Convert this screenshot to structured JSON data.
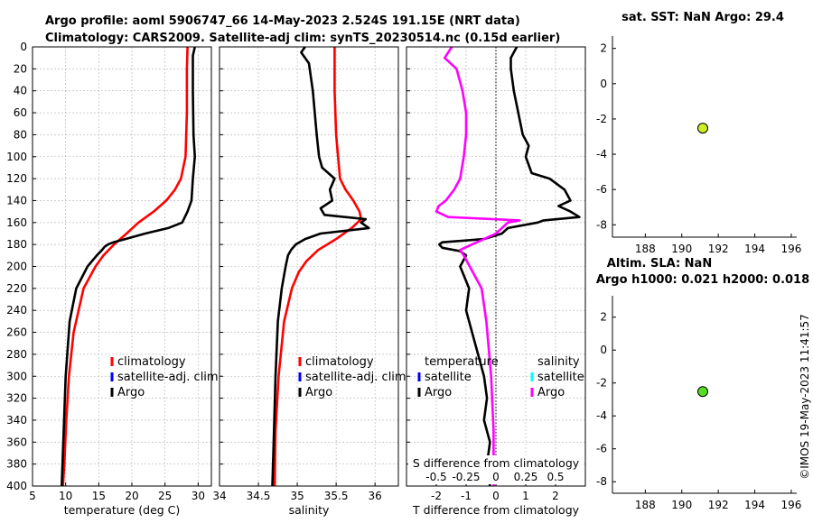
{
  "title_line1": "Argo profile: aoml 5906747_66 14-May-2023 2.524S 191.15E (NRT data)",
  "title_line2": "Climatology: CARS2009. Satellite-adj clim: synTS_20230514.nc (0.15d earlier)",
  "stamp": "©IMOS 19-May-2023 11:41:57",
  "colors": {
    "climatology": "#ff0000",
    "satellite": "#0000ff",
    "argo": "#000000",
    "salinity_sat": "#00ffff",
    "salinity_argo": "#ff00ff",
    "marker1": "#ccee22",
    "marker2": "#55dd22"
  },
  "chart_data": [
    {
      "id": "temperature",
      "type": "line",
      "xlabel": "temperature (deg C)",
      "xlim": [
        5,
        32
      ],
      "xticks": [
        "5",
        "10",
        "15",
        "20",
        "25",
        "30"
      ],
      "ylim": [
        0,
        400
      ],
      "yticks": [
        "0",
        "20",
        "40",
        "60",
        "80",
        "100",
        "120",
        "140",
        "160",
        "180",
        "200",
        "220",
        "240",
        "260",
        "280",
        "300",
        "320",
        "340",
        "360",
        "380",
        "400"
      ],
      "legend": [
        "climatology",
        "satellite-adj. clim",
        "Argo"
      ],
      "series": [
        {
          "name": "climatology",
          "y": [
            0,
            20,
            60,
            100,
            120,
            130,
            140,
            150,
            160,
            170,
            180,
            190,
            200,
            220,
            260,
            300,
            340,
            380,
            400
          ],
          "x": [
            28.4,
            28.3,
            28.3,
            28.1,
            27.4,
            26.5,
            25.2,
            23.3,
            21.0,
            19.2,
            17.3,
            15.7,
            14.5,
            12.7,
            11.2,
            10.5,
            10.1,
            9.8,
            9.6
          ]
        },
        {
          "name": "Argo",
          "y": [
            0,
            3,
            8,
            40,
            80,
            100,
            120,
            140,
            150,
            160,
            165,
            170,
            175,
            178,
            180,
            182,
            185,
            190,
            200,
            220,
            250,
            300,
            350,
            400
          ],
          "x": [
            29.5,
            29.4,
            29.2,
            29.2,
            29.3,
            29.5,
            29.2,
            29.0,
            28.4,
            27.6,
            25.5,
            22.0,
            19.0,
            17.2,
            16.4,
            15.9,
            15.5,
            14.7,
            13.3,
            11.6,
            10.6,
            10.0,
            9.7,
            9.4
          ]
        }
      ]
    },
    {
      "id": "salinity",
      "type": "line",
      "xlabel": "salinity",
      "xlim": [
        34,
        36.3
      ],
      "xticks": [
        "34",
        "34.5",
        "35",
        "35.5",
        "36"
      ],
      "ylim": [
        0,
        400
      ],
      "legend": [
        "climatology",
        "satellite-adj. clim",
        "Argo"
      ],
      "series": [
        {
          "name": "climatology",
          "y": [
            0,
            40,
            80,
            120,
            130,
            140,
            150,
            157,
            165,
            175,
            185,
            195,
            205,
            220,
            250,
            300,
            350,
            400
          ],
          "x": [
            35.48,
            35.48,
            35.5,
            35.55,
            35.62,
            35.72,
            35.8,
            35.82,
            35.7,
            35.5,
            35.27,
            35.12,
            35.02,
            34.93,
            34.83,
            34.76,
            34.72,
            34.71
          ]
        },
        {
          "name": "Argo",
          "y": [
            0,
            5,
            15,
            40,
            80,
            100,
            110,
            120,
            130,
            140,
            147,
            153,
            157,
            160,
            165,
            170,
            175,
            180,
            185,
            190,
            200,
            220,
            250,
            300,
            350,
            400
          ],
          "x": [
            35.1,
            35.05,
            35.15,
            35.2,
            35.25,
            35.28,
            35.32,
            35.48,
            35.42,
            35.45,
            35.3,
            35.35,
            35.88,
            35.82,
            35.92,
            35.3,
            35.1,
            34.98,
            34.92,
            34.88,
            34.85,
            34.8,
            34.75,
            34.72,
            34.7,
            34.68
          ]
        }
      ]
    },
    {
      "id": "difference",
      "type": "line",
      "xlabel": "T difference from climatology",
      "top_xlabel": "S difference from climatology",
      "xlim": [
        -3,
        3
      ],
      "xticks": [
        "-2",
        "-1",
        "0",
        "1",
        "2"
      ],
      "s_xticks": [
        "-0.5",
        "-0.25",
        "0",
        "0.25",
        "0.5"
      ],
      "ylim": [
        0,
        400
      ],
      "legend_temperature_title": "temperature",
      "legend_salinity_title": "salinity",
      "legend_temperature": [
        "satellite",
        "Argo"
      ],
      "legend_salinity": [
        "satellite",
        "Argo"
      ],
      "series": [
        {
          "name": "T Argo",
          "y": [
            0,
            5,
            10,
            20,
            40,
            80,
            90,
            100,
            115,
            120,
            130,
            140,
            145,
            150,
            155,
            158,
            160,
            165,
            170,
            175,
            178,
            180,
            183,
            186,
            190,
            200,
            220,
            240,
            260,
            280,
            300,
            320,
            340,
            360,
            380,
            400
          ],
          "x": [
            0.7,
            0.6,
            0.5,
            0.5,
            0.6,
            0.9,
            1.1,
            1.0,
            1.2,
            1.8,
            2.3,
            2.5,
            2.1,
            2.5,
            2.8,
            1.6,
            1.4,
            0.4,
            0.2,
            -0.4,
            -1.8,
            -1.9,
            -1.8,
            -1.2,
            -1.0,
            -1.2,
            -0.9,
            -1.0,
            -0.8,
            -0.6,
            -0.4,
            -0.3,
            -0.4,
            -0.2,
            -0.3,
            -0.2
          ]
        },
        {
          "name": "S Argo",
          "y": [
            0,
            10,
            20,
            40,
            60,
            80,
            100,
            120,
            130,
            140,
            145,
            150,
            155,
            158,
            160,
            165,
            170,
            175,
            180,
            185,
            190,
            200,
            220,
            250,
            300,
            350,
            400
          ],
          "x": [
            -0.37,
            -0.43,
            -0.33,
            -0.28,
            -0.25,
            -0.25,
            -0.27,
            -0.3,
            -0.35,
            -0.42,
            -0.48,
            -0.5,
            -0.4,
            0.2,
            0.1,
            0.05,
            0.0,
            -0.1,
            -0.2,
            -0.3,
            -0.27,
            -0.22,
            -0.12,
            -0.08,
            -0.04,
            -0.02,
            -0.02
          ]
        }
      ]
    },
    {
      "id": "sst",
      "type": "scatter",
      "title": "sat. SST: NaN Argo: 29.4",
      "xlim": [
        186.2,
        196.3
      ],
      "xticks": [
        "188",
        "190",
        "192",
        "194",
        "196"
      ],
      "ylim": [
        -8.7,
        2.7
      ],
      "yticks": [
        "2",
        "0",
        "-2",
        "-4",
        "-6",
        "-8"
      ],
      "points": [
        {
          "x": 191.15,
          "y": -2.52
        }
      ]
    },
    {
      "id": "sla",
      "type": "scatter",
      "title": "Altim. SLA: NaN",
      "subtitle": "Argo h1000: 0.021 h2000: 0.018",
      "xlim": [
        186.2,
        196.3
      ],
      "xticks": [
        "188",
        "190",
        "192",
        "194",
        "196"
      ],
      "ylim": [
        -8.7,
        3.3
      ],
      "yticks": [
        "2",
        "0",
        "-2",
        "-4",
        "-6",
        "-8"
      ],
      "points": [
        {
          "x": 191.15,
          "y": -2.52
        }
      ]
    }
  ]
}
